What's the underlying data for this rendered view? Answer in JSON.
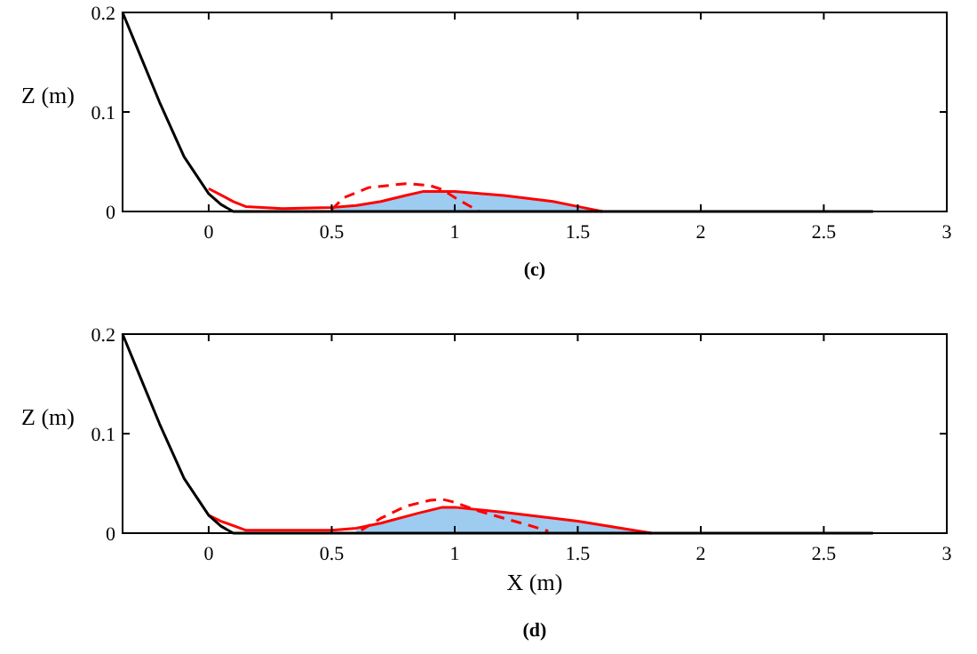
{
  "chart_data": [
    {
      "type": "line",
      "ylabel": "Z (m)",
      "annotations": [
        "(c)"
      ],
      "xlim": [
        -0.35,
        3
      ],
      "ylim": [
        0,
        0.2
      ],
      "xticks": [
        0,
        0.5,
        1,
        1.5,
        2,
        2.5,
        3
      ],
      "yticks": [
        0,
        0.1,
        0.2
      ],
      "grid": false,
      "marker": "none",
      "series": [
        {
          "color": "#ff0000",
          "line_style": "solid",
          "x": [
            0,
            0.1,
            0.15,
            0.3,
            0.5,
            0.6,
            0.7,
            0.8,
            0.87,
            1.0,
            1.2,
            1.4,
            1.5,
            1.6
          ],
          "values": [
            0.023,
            0.01,
            0.005,
            0.003,
            0.004,
            0.006,
            0.01,
            0.016,
            0.02,
            0.02,
            0.016,
            0.01,
            0.005,
            0
          ]
        },
        {
          "color": "#ff0000",
          "line_style": "dashed",
          "x": [
            0.5,
            0.55,
            0.65,
            0.8,
            0.9,
            0.95,
            1.0,
            1.1
          ],
          "values": [
            0.002,
            0.014,
            0.024,
            0.028,
            0.026,
            0.022,
            0.014,
            0
          ]
        },
        {
          "color": "#000000",
          "line_style": "solid",
          "x": [
            -0.35,
            -0.3,
            -0.2,
            -0.1,
            0,
            0.05,
            0.1,
            2.7
          ],
          "values": [
            0.2,
            0.17,
            0.11,
            0.055,
            0.018,
            0.007,
            0,
            0
          ]
        },
        {
          "type": "area",
          "color": "#9ecbf0",
          "x": [
            0.5,
            0.6,
            0.7,
            0.8,
            0.87,
            1.0,
            1.2,
            1.4,
            1.5,
            1.6
          ],
          "values": [
            0.004,
            0.006,
            0.01,
            0.016,
            0.02,
            0.02,
            0.016,
            0.01,
            0.005,
            0
          ]
        }
      ]
    },
    {
      "type": "line",
      "xlabel": "X (m)",
      "ylabel": "Z (m)",
      "annotations": [
        "(d)"
      ],
      "xlim": [
        -0.35,
        3
      ],
      "ylim": [
        0,
        0.2
      ],
      "xticks": [
        0,
        0.5,
        1,
        1.5,
        2,
        2.5,
        3
      ],
      "yticks": [
        0,
        0.1,
        0.2
      ],
      "grid": false,
      "marker": "none",
      "series": [
        {
          "color": "#ff0000",
          "line_style": "solid",
          "x": [
            0,
            0.05,
            0.15,
            0.5,
            0.6,
            0.7,
            0.85,
            0.95,
            1.0,
            1.2,
            1.5,
            1.8
          ],
          "values": [
            0.018,
            0.012,
            0.003,
            0.003,
            0.005,
            0.01,
            0.02,
            0.026,
            0.026,
            0.021,
            0.012,
            0
          ]
        },
        {
          "color": "#ff0000",
          "line_style": "dashed",
          "x": [
            0.62,
            0.7,
            0.8,
            0.9,
            0.95,
            1.0,
            1.1,
            1.2,
            1.3,
            1.38
          ],
          "values": [
            0.003,
            0.015,
            0.027,
            0.033,
            0.034,
            0.031,
            0.022,
            0.015,
            0.008,
            0.002
          ]
        },
        {
          "color": "#000000",
          "line_style": "solid",
          "x": [
            -0.35,
            -0.3,
            -0.2,
            -0.1,
            0,
            0.05,
            0.1,
            2.7
          ],
          "values": [
            0.2,
            0.17,
            0.11,
            0.055,
            0.018,
            0.007,
            0,
            0
          ]
        },
        {
          "type": "area",
          "color": "#9ecbf0",
          "x": [
            0.6,
            0.7,
            0.85,
            0.95,
            1.0,
            1.2,
            1.5,
            1.8
          ],
          "values": [
            0.005,
            0.01,
            0.02,
            0.026,
            0.026,
            0.021,
            0.012,
            0
          ]
        }
      ]
    }
  ]
}
